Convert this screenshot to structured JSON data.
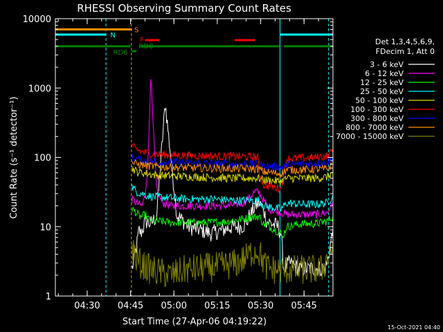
{
  "chart_data": {
    "type": "line",
    "title": "RHESSI Observing Summary Count Rates",
    "xlabel": "Start Time (27-Apr-06 04:19:22)",
    "ylabel": "Count Rate (s⁻¹ detector⁻¹)",
    "yscale": "log",
    "ylim": [
      1,
      10000
    ],
    "xlim_minutes_after_0419": [
      0,
      96
    ],
    "x_ticks": [
      {
        "label": "04:30",
        "minutes_after_0419": 11
      },
      {
        "label": "04:45",
        "minutes_after_0419": 26
      },
      {
        "label": "05:00",
        "minutes_after_0419": 41
      },
      {
        "label": "05:15",
        "minutes_after_0419": 56
      },
      {
        "label": "05:30",
        "minutes_after_0419": 71
      },
      {
        "label": "05:45",
        "minutes_after_0419": 86
      }
    ],
    "y_ticks": [
      {
        "label": "1",
        "value": 1
      },
      {
        "label": "10",
        "value": 10
      },
      {
        "label": "100",
        "value": 100
      },
      {
        "label": "1000",
        "value": 1000
      },
      {
        "label": "10000",
        "value": 10000
      }
    ],
    "legend_header": [
      "Det 1,3,4,5,6,9,",
      "FDecim 1, Att 0"
    ],
    "legend_position": "right",
    "series": [
      {
        "name": "3 - 6 keV",
        "color": "#ffffff",
        "x": [
          26.5,
          27,
          28,
          29,
          29.5,
          30.5,
          31,
          33,
          35,
          38,
          42,
          46,
          50,
          54,
          58,
          61,
          64,
          66,
          67,
          68,
          69,
          70,
          70.5,
          72,
          73,
          75,
          77,
          78,
          79,
          81,
          84,
          87,
          90,
          93,
          94,
          95,
          96
        ],
        "y": [
          2.5,
          3,
          5,
          9,
          8,
          10,
          12,
          11,
          14,
          600,
          15,
          10,
          9,
          8,
          9,
          10,
          10,
          11,
          14,
          16,
          20,
          21,
          22,
          18,
          12,
          11,
          10,
          8,
          2.5,
          3,
          2.5,
          2.5,
          2.5,
          2.5,
          3,
          5,
          9
        ]
      },
      {
        "name": "6 - 12 keV",
        "color": "#ff00ff",
        "x": [
          26.5,
          28,
          30,
          31,
          32,
          33,
          34,
          35,
          37,
          40,
          45,
          50,
          55,
          60,
          65,
          67,
          69,
          70.5,
          72,
          74,
          76,
          78,
          80,
          85,
          90,
          94,
          96
        ],
        "y": [
          25,
          22,
          20,
          28,
          80,
          1500,
          200,
          35,
          22,
          20,
          20,
          20,
          20,
          20,
          22,
          26,
          32,
          31,
          24,
          18,
          17,
          16,
          15,
          15,
          15,
          16,
          22
        ]
      },
      {
        "name": "12 - 25 keV",
        "color": "#00ff00",
        "x": [
          26.5,
          28,
          29,
          30,
          31,
          32,
          34,
          36,
          40,
          45,
          50,
          55,
          60,
          65,
          70,
          70.5,
          72,
          74,
          76,
          78,
          78.5,
          80,
          85,
          90,
          94,
          96
        ],
        "y": [
          18,
          16,
          14,
          14,
          15,
          13,
          12,
          12,
          11.5,
          11.5,
          11.5,
          11.5,
          12,
          13,
          14,
          14,
          11,
          10,
          9,
          8,
          7,
          10,
          11,
          11,
          12,
          14
        ]
      },
      {
        "name": "25 - 50 keV",
        "color": "#00ffff",
        "x": [
          26.5,
          28,
          30,
          32,
          34,
          36,
          40,
          45,
          50,
          55,
          60,
          65,
          70,
          70.5,
          72,
          75,
          78,
          80,
          85,
          90,
          94,
          96
        ],
        "y": [
          38,
          32,
          30,
          28,
          27,
          27,
          26,
          25,
          25,
          25,
          24,
          24,
          24,
          24,
          20,
          19,
          18,
          22,
          21,
          21,
          22,
          28
        ]
      },
      {
        "name": "50 - 100 keV",
        "color": "#dddd00",
        "x": [
          26.5,
          28,
          30,
          32,
          34,
          36,
          40,
          45,
          50,
          55,
          60,
          65,
          70,
          70.5,
          72,
          75,
          78,
          80,
          85,
          90,
          94,
          96
        ],
        "y": [
          70,
          63,
          60,
          58,
          56,
          55,
          54,
          53,
          52,
          51,
          50,
          50,
          50,
          50,
          47,
          46,
          45,
          50,
          50,
          50,
          52,
          60
        ]
      },
      {
        "name": "100 - 300 keV",
        "color": "#ff0000",
        "x": [
          26.5,
          28,
          30,
          32,
          34,
          36,
          40,
          45,
          50,
          55,
          60,
          65,
          70,
          70.5,
          72,
          75,
          78,
          80,
          85,
          90,
          94,
          96
        ],
        "y": [
          145,
          130,
          120,
          115,
          112,
          110,
          108,
          106,
          105,
          104,
          103,
          102,
          101,
          60,
          40,
          38,
          35,
          95,
          98,
          100,
          105,
          130
        ]
      },
      {
        "name": "300 - 800 keV",
        "color": "#0000ff",
        "x": [
          26.5,
          28,
          30,
          32,
          34,
          36,
          40,
          45,
          50,
          55,
          60,
          65,
          70,
          70.5,
          72,
          75,
          78,
          80,
          85,
          90,
          94,
          96
        ],
        "y": [
          100,
          95,
          90,
          88,
          86,
          85,
          84,
          83,
          82,
          81,
          80,
          80,
          80,
          80,
          76,
          74,
          72,
          78,
          80,
          82,
          85,
          100
        ]
      },
      {
        "name": "800 - 7000 keV",
        "color": "#ff8c00",
        "x": [
          26.5,
          28,
          30,
          32,
          34,
          36,
          40,
          45,
          50,
          55,
          60,
          65,
          70,
          70.5,
          72,
          75,
          78,
          80,
          85,
          90,
          94,
          96
        ],
        "y": [
          85,
          80,
          78,
          76,
          74,
          73,
          72,
          71,
          70,
          70,
          69,
          69,
          68,
          68,
          62,
          60,
          58,
          66,
          66,
          67,
          68,
          80
        ]
      },
      {
        "name": "7000 - 15000 keV",
        "color": "#808000",
        "x": [
          26.5,
          28,
          30,
          33,
          36,
          40,
          45,
          50,
          55,
          60,
          63,
          66,
          68,
          70,
          71,
          73,
          76,
          80,
          84,
          88,
          92,
          95,
          96
        ],
        "y": [
          5.5,
          3.5,
          2.8,
          2.4,
          2.2,
          2.0,
          2.4,
          2.5,
          2.6,
          2.8,
          3.0,
          3.6,
          4.3,
          4.6,
          3.8,
          2.6,
          2.4,
          2.4,
          2.4,
          2.4,
          2.4,
          4,
          6
        ]
      }
    ],
    "flag_lines": [
      {
        "label": "S",
        "color": "#ff8c00",
        "value": 7000,
        "segments": [
          [
            0,
            26.5
          ]
        ]
      },
      {
        "label": "N",
        "color": "#00ffff",
        "value": 5900,
        "segments": [
          [
            0,
            17.5
          ],
          [
            77.7,
            96
          ]
        ]
      },
      {
        "label": "F",
        "color": "#ff0000",
        "value": 4900,
        "segments": [
          [
            31,
            36
          ],
          [
            62,
            69
          ]
        ]
      },
      {
        "label": "RD6",
        "color": "#008000",
        "value": 3400,
        "segments": [
          [
            26.5,
            28
          ]
        ]
      },
      {
        "label": "RD8",
        "color": "#008000",
        "value": 4000,
        "segments": [
          [
            0,
            26
          ],
          [
            29,
            70
          ],
          [
            70,
            77.5
          ],
          [
            79,
            96
          ]
        ]
      }
    ],
    "vertical_lines": [
      {
        "color": "#00ffff",
        "style": "solid",
        "minutes_after_0419": 0
      },
      {
        "color": "#00ffff",
        "style": "dashed",
        "minutes_after_0419": 17.5
      },
      {
        "color": "#ff8c00",
        "style": "dashed",
        "minutes_after_0419": 26.3
      },
      {
        "color": "#00ffff",
        "style": "solid",
        "minutes_after_0419": 77.7
      },
      {
        "color": "#00ffff",
        "style": "dashed",
        "minutes_after_0419": 94.5
      }
    ],
    "grid": false
  },
  "footer": {
    "timestamp": "15-Oct-2021 04:40"
  }
}
